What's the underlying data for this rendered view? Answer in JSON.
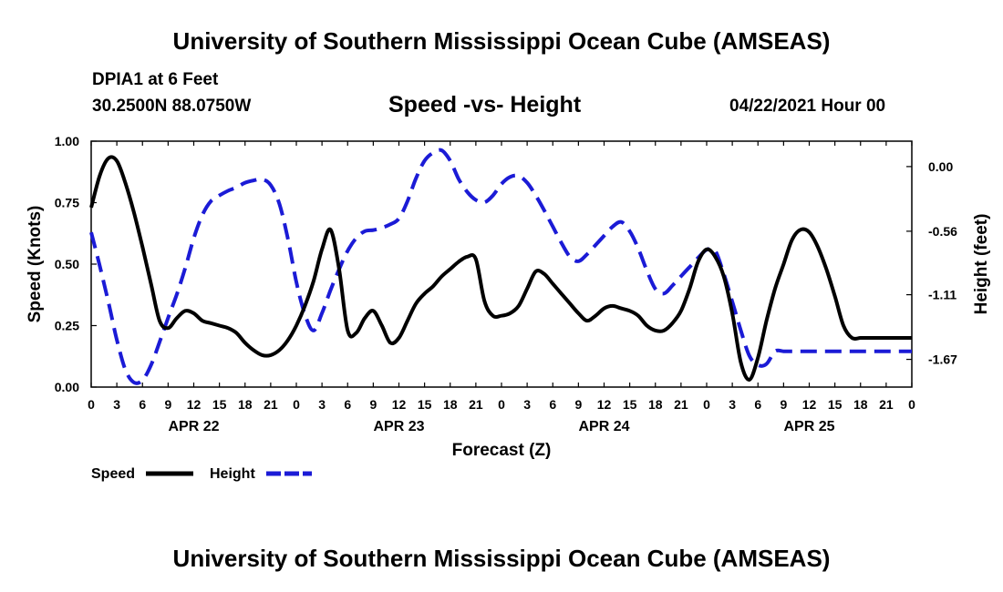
{
  "header": {
    "title": "University of Southern Mississippi Ocean Cube (AMSEAS)",
    "station": "DPIA1 at 6 Feet",
    "coords": "30.2500N  88.0750W",
    "chart_title": "Speed -vs- Height",
    "date": "04/22/2021 Hour 00"
  },
  "footer": {
    "title": "University of Southern Mississippi Ocean Cube (AMSEAS)"
  },
  "chart_data": {
    "type": "line",
    "title": "Speed -vs- Height",
    "xlabel": "Forecast (Z)",
    "ylabel": "Speed (Knots)",
    "y2label": "Height (feet)",
    "xlim": [
      0,
      96
    ],
    "ylim": [
      0,
      1
    ],
    "y2lim": [
      -1.91,
      0.22
    ],
    "x_tick_labels": [
      "0",
      "3",
      "6",
      "9",
      "12",
      "15",
      "18",
      "21",
      "0",
      "3",
      "6",
      "9",
      "12",
      "15",
      "18",
      "21",
      "0",
      "3",
      "6",
      "9",
      "12",
      "15",
      "18",
      "21",
      "0",
      "3",
      "6",
      "9",
      "12",
      "15",
      "18",
      "21",
      "0"
    ],
    "day_labels": [
      {
        "label": "APR 22",
        "x": 12
      },
      {
        "label": "APR 23",
        "x": 36
      },
      {
        "label": "APR 24",
        "x": 60
      },
      {
        "label": "APR 25",
        "x": 84
      }
    ],
    "y_ticks": [
      {
        "value": 0,
        "label": "0.00"
      },
      {
        "value": 0.25,
        "label": "0.25"
      },
      {
        "value": 0.5,
        "label": "0.50"
      },
      {
        "value": 0.75,
        "label": "0.75"
      },
      {
        "value": 1,
        "label": "1.00"
      }
    ],
    "y2_ticks": [
      {
        "value": 0,
        "label": "0.00"
      },
      {
        "value": -0.56,
        "label": "-0.56"
      },
      {
        "value": -1.11,
        "label": "-1.11"
      },
      {
        "value": -1.67,
        "label": "-1.67"
      }
    ],
    "series": [
      {
        "name": "Speed",
        "axis": "left",
        "color": "#000000",
        "dash": "solid",
        "x": [
          0,
          1,
          2,
          3,
          4,
          5,
          6,
          7,
          8,
          9,
          10,
          11,
          12,
          13,
          14,
          15,
          16,
          17,
          18,
          19,
          20,
          21,
          22,
          23,
          24,
          25,
          26,
          27,
          28,
          29,
          30,
          31,
          32,
          33,
          34,
          35,
          36,
          37,
          38,
          39,
          40,
          41,
          42,
          43,
          44,
          45,
          46,
          47,
          48,
          49,
          50,
          51,
          52,
          53,
          54,
          55,
          56,
          57,
          58,
          59,
          60,
          61,
          62,
          63,
          64,
          65,
          66,
          67,
          68,
          69,
          70,
          71,
          72,
          73,
          74,
          75,
          76,
          77,
          78,
          79,
          80,
          81,
          82,
          83,
          84,
          85,
          86,
          87,
          88,
          89,
          90,
          91,
          92,
          93,
          94,
          95,
          96
        ],
        "values": [
          0.73,
          0.86,
          0.93,
          0.92,
          0.83,
          0.71,
          0.57,
          0.42,
          0.27,
          0.24,
          0.28,
          0.31,
          0.3,
          0.27,
          0.26,
          0.25,
          0.24,
          0.22,
          0.18,
          0.15,
          0.13,
          0.13,
          0.15,
          0.19,
          0.25,
          0.33,
          0.43,
          0.56,
          0.64,
          0.48,
          0.23,
          0.22,
          0.28,
          0.31,
          0.25,
          0.18,
          0.2,
          0.27,
          0.34,
          0.38,
          0.41,
          0.45,
          0.48,
          0.51,
          0.53,
          0.52,
          0.35,
          0.29,
          0.29,
          0.3,
          0.33,
          0.4,
          0.47,
          0.46,
          0.42,
          0.38,
          0.34,
          0.3,
          0.27,
          0.29,
          0.32,
          0.33,
          0.32,
          0.31,
          0.29,
          0.25,
          0.23,
          0.23,
          0.26,
          0.31,
          0.4,
          0.51,
          0.56,
          0.53,
          0.45,
          0.3,
          0.1,
          0.03,
          0.12,
          0.27,
          0.4,
          0.5,
          0.6,
          0.64,
          0.63,
          0.57,
          0.48,
          0.37,
          0.25,
          0.2,
          0.2,
          0.2,
          0.2,
          0.2,
          0.2,
          0.2,
          0.2
        ]
      },
      {
        "name": "Height",
        "axis": "right",
        "color": "#1b1bd6",
        "dash": "dashed",
        "x": [
          0,
          1,
          2,
          3,
          4,
          5,
          6,
          7,
          8,
          9,
          10,
          11,
          12,
          13,
          14,
          15,
          16,
          17,
          18,
          19,
          20,
          21,
          22,
          23,
          24,
          25,
          26,
          27,
          28,
          29,
          30,
          31,
          32,
          33,
          34,
          35,
          36,
          37,
          38,
          39,
          40,
          41,
          42,
          43,
          44,
          45,
          46,
          47,
          48,
          49,
          50,
          51,
          52,
          53,
          54,
          55,
          56,
          57,
          58,
          59,
          60,
          61,
          62,
          63,
          64,
          65,
          66,
          67,
          68,
          69,
          70,
          71,
          72,
          73,
          74,
          75,
          76,
          77,
          78,
          79,
          80,
          81,
          82,
          83,
          84,
          85,
          86,
          87,
          88,
          89,
          90,
          91,
          92,
          93,
          94,
          95,
          96
        ],
        "values": [
          -0.57,
          -0.86,
          -1.17,
          -1.5,
          -1.76,
          -1.87,
          -1.85,
          -1.72,
          -1.52,
          -1.31,
          -1.11,
          -0.88,
          -0.62,
          -0.42,
          -0.3,
          -0.25,
          -0.21,
          -0.18,
          -0.14,
          -0.12,
          -0.11,
          -0.16,
          -0.32,
          -0.62,
          -1.0,
          -1.28,
          -1.42,
          -1.27,
          -1.07,
          -0.89,
          -0.73,
          -0.62,
          -0.56,
          -0.55,
          -0.53,
          -0.5,
          -0.45,
          -0.3,
          -0.1,
          0.05,
          0.12,
          0.14,
          0.05,
          -0.11,
          -0.22,
          -0.29,
          -0.31,
          -0.25,
          -0.15,
          -0.09,
          -0.08,
          -0.14,
          -0.25,
          -0.38,
          -0.52,
          -0.66,
          -0.78,
          -0.82,
          -0.76,
          -0.68,
          -0.6,
          -0.52,
          -0.48,
          -0.56,
          -0.71,
          -0.9,
          -1.06,
          -1.1,
          -1.03,
          -0.95,
          -0.87,
          -0.79,
          -0.72,
          -0.73,
          -0.93,
          -1.17,
          -1.42,
          -1.64,
          -1.72,
          -1.71,
          -1.6,
          -1.6,
          -1.6,
          -1.6,
          -1.6,
          -1.6,
          -1.6,
          -1.6,
          -1.6,
          -1.6,
          -1.6,
          -1.6,
          -1.6,
          -1.6,
          -1.6,
          -1.6,
          -1.6
        ]
      }
    ],
    "legend": {
      "position": "bottom-left",
      "entries": [
        "Speed",
        "Height"
      ]
    }
  }
}
